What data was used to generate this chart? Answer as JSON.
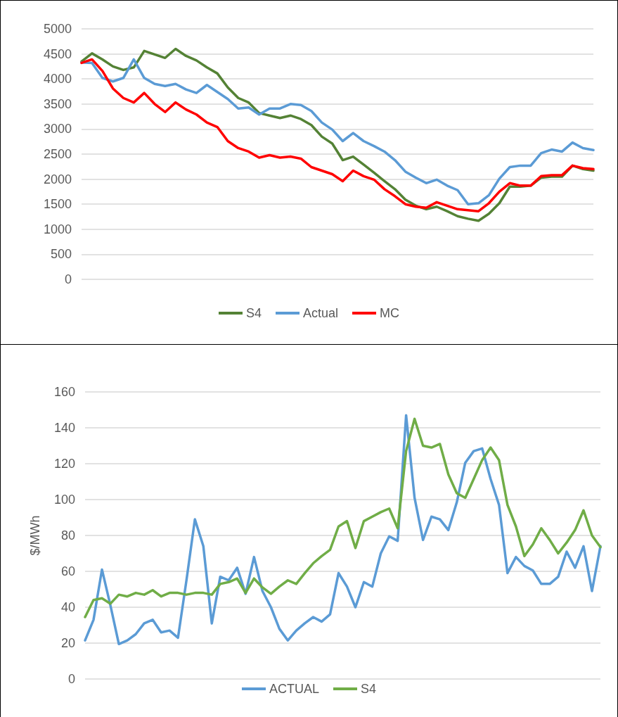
{
  "chart_data": [
    {
      "type": "line",
      "categories": [
        null,
        null,
        null,
        null,
        null,
        null,
        null,
        null,
        null,
        null,
        null,
        null,
        null,
        null,
        null,
        null,
        null,
        null,
        null,
        null,
        null,
        null,
        null,
        null,
        null,
        null,
        null,
        null,
        null,
        null,
        null,
        null,
        null,
        null,
        null,
        null,
        null,
        null,
        null,
        null,
        null,
        null,
        null,
        null,
        null,
        null,
        null,
        null,
        null,
        null
      ],
      "series": [
        {
          "name": "S4",
          "color": "#548235",
          "values": [
            4350,
            4510,
            4390,
            4250,
            4180,
            4230,
            4560,
            4490,
            4420,
            4600,
            4460,
            4370,
            4230,
            4110,
            3830,
            3620,
            3530,
            3320,
            3270,
            3220,
            3270,
            3200,
            3080,
            2850,
            2710,
            2380,
            2450,
            2290,
            2130,
            1960,
            1800,
            1590,
            1470,
            1400,
            1450,
            1360,
            1260,
            1210,
            1170,
            1310,
            1520,
            1850,
            1850,
            1870,
            2030,
            2050,
            2050,
            2270,
            2200,
            2170
          ]
        },
        {
          "name": "Actual",
          "color": "#5b9bd5",
          "values": [
            4330,
            4320,
            4020,
            3950,
            4020,
            4390,
            4020,
            3900,
            3860,
            3900,
            3790,
            3720,
            3880,
            3740,
            3600,
            3410,
            3430,
            3290,
            3410,
            3410,
            3500,
            3480,
            3360,
            3130,
            2990,
            2760,
            2920,
            2760,
            2660,
            2550,
            2380,
            2150,
            2030,
            1920,
            1990,
            1870,
            1780,
            1500,
            1520,
            1680,
            2010,
            2240,
            2270,
            2270,
            2520,
            2590,
            2550,
            2730,
            2620,
            2580
          ]
        },
        {
          "name": "MC",
          "color": "#ff0000",
          "values": [
            4320,
            4390,
            4160,
            3810,
            3620,
            3530,
            3720,
            3500,
            3340,
            3530,
            3390,
            3290,
            3130,
            3040,
            2760,
            2620,
            2550,
            2430,
            2480,
            2430,
            2450,
            2410,
            2240,
            2170,
            2100,
            1960,
            2170,
            2060,
            1990,
            1800,
            1660,
            1500,
            1450,
            1430,
            1540,
            1470,
            1400,
            1380,
            1360,
            1520,
            1750,
            1920,
            1870,
            1870,
            2060,
            2080,
            2080,
            2270,
            2220,
            2200
          ]
        }
      ],
      "ylim": [
        0,
        5000
      ],
      "yticks": [
        0,
        500,
        1000,
        1500,
        2000,
        2500,
        3000,
        3500,
        4000,
        4500,
        5000
      ],
      "grid": "y",
      "legend": "bottom",
      "tick_labels": "y",
      "marker": "none",
      "line_style": "solid"
    },
    {
      "type": "line",
      "ylabel": "$/MWh",
      "categories": [
        null,
        null,
        null,
        null,
        null,
        null,
        null,
        null,
        null,
        null,
        null,
        null,
        null,
        null,
        null,
        null,
        null,
        null,
        null,
        null,
        null,
        null,
        null,
        null,
        null,
        null,
        null,
        null,
        null,
        null,
        null,
        null,
        null,
        null,
        null,
        null,
        null,
        null,
        null,
        null,
        null,
        null,
        null,
        null,
        null,
        null,
        null,
        null,
        null,
        null,
        null,
        null,
        null,
        null,
        null,
        null,
        null,
        null,
        null,
        null,
        null,
        null
      ],
      "series": [
        {
          "name": "ACTUAL",
          "color": "#5b9bd5",
          "values": [
            21.5,
            33,
            61,
            41,
            19.5,
            21.5,
            25,
            31,
            33,
            26,
            27,
            23,
            55,
            89,
            74,
            31,
            57,
            55,
            62,
            47.5,
            68,
            49,
            40,
            28,
            21.5,
            27,
            31,
            34.5,
            32,
            36,
            59,
            51.5,
            40,
            54,
            51.5,
            70,
            79.5,
            77,
            147,
            101,
            77.5,
            90.5,
            89,
            83,
            98.5,
            120.5,
            127,
            128.5,
            111.5,
            97,
            59,
            68,
            63,
            60.5,
            53,
            53,
            57,
            71,
            62,
            74,
            49,
            74
          ]
        },
        {
          "name": "S4",
          "color": "#70ad47",
          "values": [
            34.5,
            44,
            45,
            42,
            47,
            46,
            48,
            47,
            49.5,
            46,
            48,
            48,
            47,
            48,
            48,
            47,
            53,
            54,
            56,
            48,
            56,
            51,
            47.5,
            51.5,
            55,
            53,
            59,
            64.5,
            68.5,
            72,
            85,
            88,
            73,
            88,
            90.5,
            93,
            95,
            84,
            127,
            145,
            130,
            129,
            131,
            114,
            103.5,
            101,
            111.5,
            122,
            129,
            122,
            97,
            85,
            68.5,
            75,
            84,
            77.5,
            70,
            76,
            83,
            94,
            80,
            73.5
          ]
        }
      ],
      "ylim": [
        0,
        160
      ],
      "yticks": [
        0,
        20,
        40,
        60,
        80,
        100,
        120,
        140,
        160
      ],
      "grid": "y",
      "legend": "bottom",
      "tick_labels": "y",
      "marker": "none",
      "line_style": "solid"
    }
  ]
}
